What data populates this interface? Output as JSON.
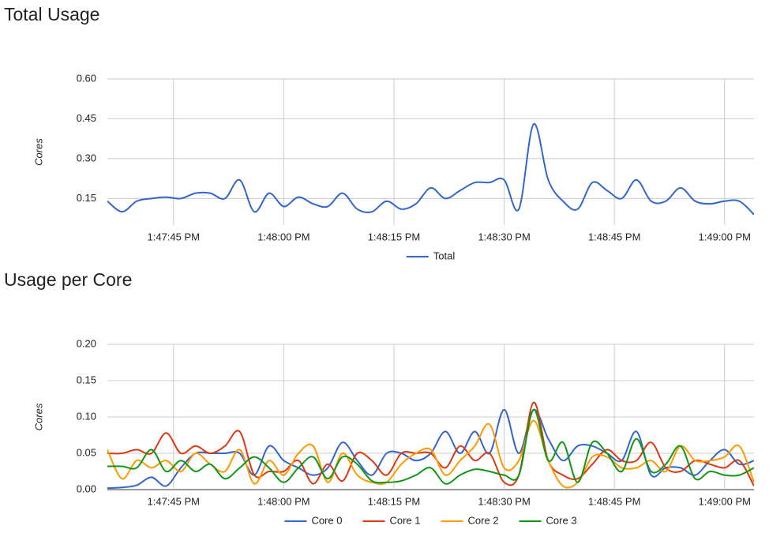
{
  "chart_data": [
    {
      "type": "line",
      "title": "Total Usage",
      "y_label": "Cores",
      "x": [
        "1:47:36 PM",
        "1:47:38 PM",
        "1:47:40 PM",
        "1:47:42 PM",
        "1:47:44 PM",
        "1:47:46 PM",
        "1:47:48 PM",
        "1:47:50 PM",
        "1:47:52 PM",
        "1:47:54 PM",
        "1:47:56 PM",
        "1:47:58 PM",
        "1:48:00 PM",
        "1:48:02 PM",
        "1:48:04 PM",
        "1:48:06 PM",
        "1:48:08 PM",
        "1:48:10 PM",
        "1:48:12 PM",
        "1:48:14 PM",
        "1:48:16 PM",
        "1:48:18 PM",
        "1:48:20 PM",
        "1:48:22 PM",
        "1:48:24 PM",
        "1:48:26 PM",
        "1:48:28 PM",
        "1:48:30 PM",
        "1:48:32 PM",
        "1:48:34 PM",
        "1:48:36 PM",
        "1:48:38 PM",
        "1:48:40 PM",
        "1:48:42 PM",
        "1:48:44 PM",
        "1:48:46 PM",
        "1:48:48 PM",
        "1:48:50 PM",
        "1:48:52 PM",
        "1:48:54 PM",
        "1:48:56 PM",
        "1:48:58 PM",
        "1:49:00 PM",
        "1:49:02 PM",
        "1:49:04 PM"
      ],
      "series": [
        {
          "name": "Total",
          "color": "#3366cc",
          "values": [
            0.14,
            0.1,
            0.14,
            0.15,
            0.155,
            0.15,
            0.17,
            0.17,
            0.15,
            0.22,
            0.1,
            0.17,
            0.12,
            0.155,
            0.13,
            0.12,
            0.17,
            0.11,
            0.1,
            0.14,
            0.11,
            0.13,
            0.19,
            0.15,
            0.18,
            0.21,
            0.21,
            0.22,
            0.11,
            0.43,
            0.22,
            0.14,
            0.11,
            0.21,
            0.18,
            0.15,
            0.22,
            0.14,
            0.14,
            0.19,
            0.14,
            0.13,
            0.14,
            0.14,
            0.09
          ]
        }
      ],
      "xlim": [
        "1:47:36 PM",
        "1:49:04 PM"
      ],
      "xticks": [
        "1:47:45 PM",
        "1:48:00 PM",
        "1:48:15 PM",
        "1:48:30 PM",
        "1:48:45 PM",
        "1:49:00 PM"
      ],
      "ylim": [
        0.05,
        0.6
      ],
      "yticks": [
        0.15,
        {
          "value": 0.3,
          "label": "0.30"
        },
        0.45,
        {
          "value": 0.6,
          "label": "0.60"
        }
      ],
      "grid": true,
      "legend": "bottom"
    },
    {
      "type": "line",
      "title": "Usage per Core",
      "y_label": "Cores",
      "x": [
        "1:47:36 PM",
        "1:47:38 PM",
        "1:47:40 PM",
        "1:47:42 PM",
        "1:47:44 PM",
        "1:47:46 PM",
        "1:47:48 PM",
        "1:47:50 PM",
        "1:47:52 PM",
        "1:47:54 PM",
        "1:47:56 PM",
        "1:47:58 PM",
        "1:48:00 PM",
        "1:48:02 PM",
        "1:48:04 PM",
        "1:48:06 PM",
        "1:48:08 PM",
        "1:48:10 PM",
        "1:48:12 PM",
        "1:48:14 PM",
        "1:48:16 PM",
        "1:48:18 PM",
        "1:48:20 PM",
        "1:48:22 PM",
        "1:48:24 PM",
        "1:48:26 PM",
        "1:48:28 PM",
        "1:48:30 PM",
        "1:48:32 PM",
        "1:48:34 PM",
        "1:48:36 PM",
        "1:48:38 PM",
        "1:48:40 PM",
        "1:48:42 PM",
        "1:48:44 PM",
        "1:48:46 PM",
        "1:48:48 PM",
        "1:48:50 PM",
        "1:48:52 PM",
        "1:48:54 PM",
        "1:48:56 PM",
        "1:48:58 PM",
        "1:49:00 PM",
        "1:49:02 PM",
        "1:49:04 PM"
      ],
      "series": [
        {
          "name": "Core 0",
          "color": "#3366cc",
          "values": [
            0.002,
            0.003,
            0.006,
            0.017,
            0.005,
            0.03,
            0.05,
            0.05,
            0.05,
            0.05,
            0.02,
            0.06,
            0.04,
            0.03,
            0.02,
            0.03,
            0.065,
            0.04,
            0.02,
            0.05,
            0.05,
            0.04,
            0.05,
            0.08,
            0.05,
            0.08,
            0.05,
            0.11,
            0.05,
            0.11,
            0.07,
            0.04,
            0.06,
            0.06,
            0.05,
            0.04,
            0.08,
            0.02,
            0.03,
            0.03,
            0.02,
            0.04,
            0.055,
            0.035,
            0.04
          ]
        },
        {
          "name": "Core 1",
          "color": "#dc3912",
          "values": [
            0.05,
            0.05,
            0.055,
            0.05,
            0.078,
            0.05,
            0.06,
            0.05,
            0.06,
            0.08,
            0.02,
            0.025,
            0.025,
            0.04,
            0.008,
            0.035,
            0.012,
            0.05,
            0.04,
            0.02,
            0.05,
            0.05,
            0.05,
            0.03,
            0.06,
            0.04,
            0.05,
            0.01,
            0.02,
            0.12,
            0.04,
            0.02,
            0.015,
            0.035,
            0.055,
            0.04,
            0.04,
            0.065,
            0.03,
            0.025,
            0.04,
            0.035,
            0.03,
            0.04,
            0.005
          ]
        },
        {
          "name": "Core 2",
          "color": "#ff9900",
          "values": [
            0.055,
            0.015,
            0.04,
            0.03,
            0.04,
            0.025,
            0.05,
            0.035,
            0.025,
            0.055,
            0.008,
            0.04,
            0.02,
            0.05,
            0.06,
            0.01,
            0.05,
            0.02,
            0.01,
            0.01,
            0.035,
            0.05,
            0.055,
            0.02,
            0.04,
            0.06,
            0.09,
            0.03,
            0.04,
            0.095,
            0.04,
            0.005,
            0.01,
            0.045,
            0.045,
            0.03,
            0.03,
            0.04,
            0.025,
            0.06,
            0.04,
            0.04,
            0.045,
            0.06,
            0.01
          ]
        },
        {
          "name": "Core 3",
          "color": "#109618",
          "values": [
            0.032,
            0.032,
            0.03,
            0.055,
            0.025,
            0.04,
            0.025,
            0.035,
            0.015,
            0.03,
            0.045,
            0.03,
            0.01,
            0.03,
            0.045,
            0.015,
            0.045,
            0.035,
            0.012,
            0.01,
            0.012,
            0.02,
            0.03,
            0.008,
            0.02,
            0.028,
            0.025,
            0.02,
            0.02,
            0.11,
            0.04,
            0.065,
            0.01,
            0.065,
            0.05,
            0.025,
            0.07,
            0.025,
            0.035,
            0.06,
            0.015,
            0.025,
            0.02,
            0.02,
            0.03
          ]
        }
      ],
      "xlim": [
        "1:47:36 PM",
        "1:49:04 PM"
      ],
      "xticks": [
        "1:47:45 PM",
        "1:48:00 PM",
        "1:48:15 PM",
        "1:48:30 PM",
        "1:48:45 PM",
        "1:49:00 PM"
      ],
      "ylim": [
        0,
        0.2
      ],
      "yticks": [
        {
          "value": 0,
          "label": "0.00"
        },
        0.05,
        {
          "value": 0.1,
          "label": "0.10"
        },
        0.15,
        {
          "value": 0.2,
          "label": "0.20"
        }
      ],
      "grid": true,
      "legend": "bottom"
    }
  ]
}
